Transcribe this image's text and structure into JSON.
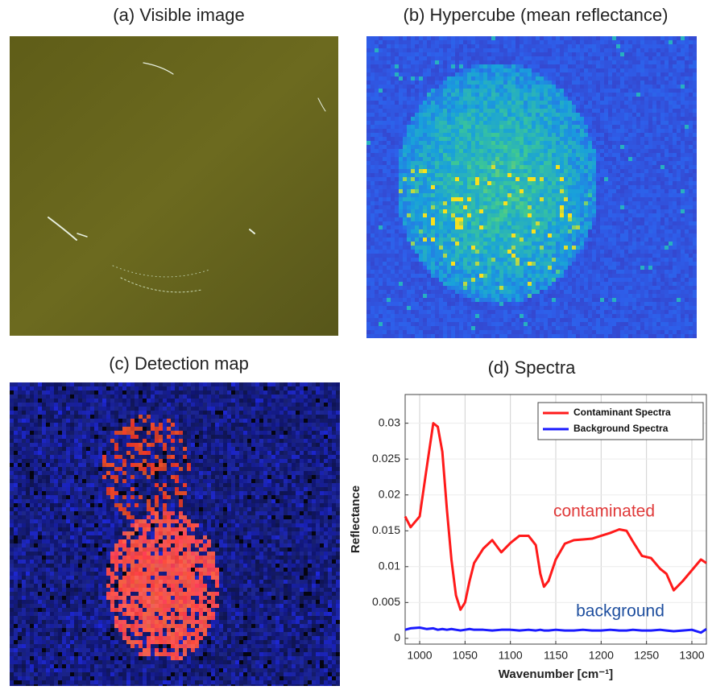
{
  "panels": [
    {
      "title": "(a) Visible image"
    },
    {
      "title": "(b) Hypercube (mean reflectance)"
    },
    {
      "title": "(c) Detection map"
    }
  ],
  "chart_data": {
    "type": "line",
    "title": "(d) Spectra",
    "x_label": "Wavenumber [cm⁻¹]",
    "y_label": "Reflectance",
    "x": [
      984,
      990,
      1000,
      1008,
      1015,
      1020,
      1025,
      1030,
      1035,
      1040,
      1045,
      1050,
      1055,
      1060,
      1070,
      1080,
      1090,
      1100,
      1110,
      1120,
      1128,
      1133,
      1137,
      1142,
      1150,
      1160,
      1170,
      1180,
      1190,
      1200,
      1210,
      1220,
      1228,
      1235,
      1245,
      1255,
      1265,
      1272,
      1280,
      1290,
      1300,
      1310,
      1316
    ],
    "series": [
      {
        "name": "Contaminant Spectra",
        "color": "#ff1a1a",
        "values": [
          0.017,
          0.0155,
          0.017,
          0.024,
          0.03,
          0.0295,
          0.026,
          0.018,
          0.011,
          0.006,
          0.004,
          0.005,
          0.008,
          0.0105,
          0.0125,
          0.0137,
          0.012,
          0.0133,
          0.0143,
          0.0143,
          0.013,
          0.009,
          0.0072,
          0.008,
          0.011,
          0.0132,
          0.0137,
          0.0138,
          0.0139,
          0.0143,
          0.0147,
          0.0152,
          0.015,
          0.0135,
          0.0115,
          0.0112,
          0.0097,
          0.009,
          0.0067,
          0.008,
          0.0095,
          0.011,
          0.0105
        ]
      },
      {
        "name": "Background Spectra",
        "color": "#1a1aff",
        "values": [
          0.0012,
          0.0014,
          0.0015,
          0.0013,
          0.0014,
          0.0012,
          0.0013,
          0.0012,
          0.0013,
          0.0012,
          0.0011,
          0.0012,
          0.0013,
          0.0012,
          0.0012,
          0.0011,
          0.0012,
          0.0012,
          0.0011,
          0.0012,
          0.0011,
          0.0012,
          0.0011,
          0.0011,
          0.0012,
          0.0011,
          0.0011,
          0.0012,
          0.0011,
          0.0011,
          0.0012,
          0.0011,
          0.0011,
          0.0012,
          0.0011,
          0.0011,
          0.0012,
          0.0011,
          0.001,
          0.0011,
          0.0012,
          0.0008,
          0.0013
        ]
      }
    ],
    "annotations": [
      {
        "text": "contaminated",
        "color": "#e03a3a"
      },
      {
        "text": "background",
        "color": "#1f4f9f"
      }
    ],
    "xlim": [
      984,
      1316
    ],
    "ylim": [
      -0.0008,
      0.034
    ],
    "xticks": [
      1000,
      1050,
      1100,
      1150,
      1200,
      1250,
      1300
    ],
    "yticks": [
      0,
      0.005,
      0.01,
      0.015,
      0.02,
      0.025,
      0.03
    ],
    "grid": true,
    "legend": "upper right"
  }
}
